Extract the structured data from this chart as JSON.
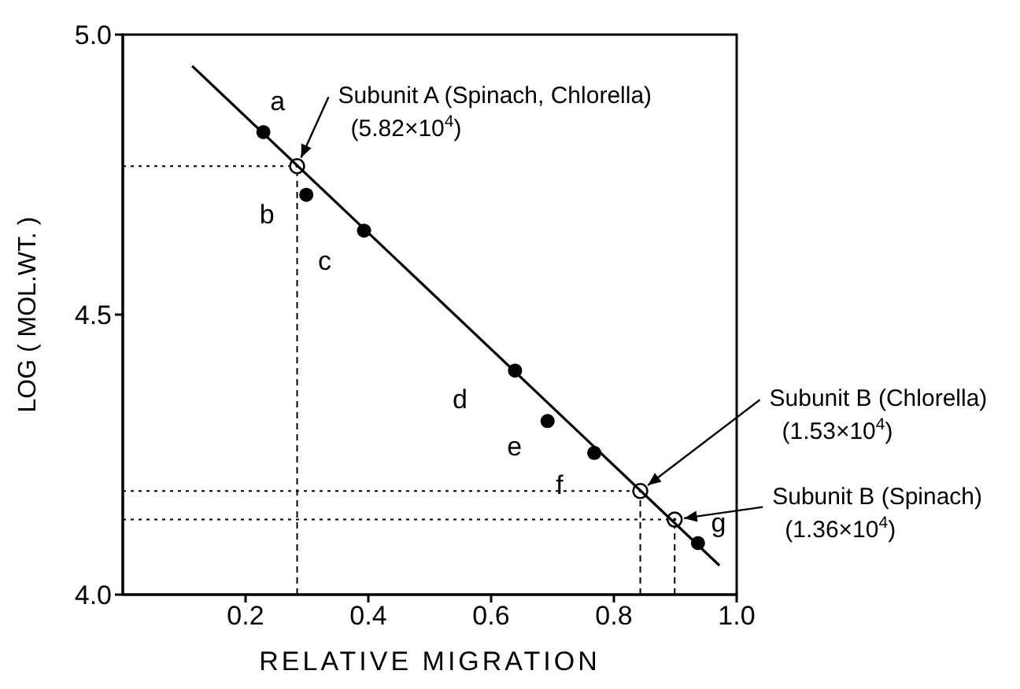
{
  "chart_data": {
    "type": "scatter",
    "xlabel": "RELATIVE MIGRATION",
    "ylabel": "LOG ( MOL.WT. )",
    "xlim": [
      0,
      1.0
    ],
    "xticks": [
      0.2,
      0.4,
      0.6,
      0.8,
      {
        "value": 1,
        "label": "1.0"
      }
    ],
    "ylim": [
      4.0,
      5.0
    ],
    "yticks": [
      {
        "value": 4,
        "label": "4.0"
      },
      4.5,
      {
        "value": 5,
        "label": "5.0"
      }
    ],
    "series": [
      {
        "color": "#000000",
        "marker": "circle",
        "x": [
          0.229,
          0.299,
          0.393,
          0.639,
          0.692,
          0.768,
          0.937
        ],
        "values": [
          4.826,
          4.714,
          4.65,
          4.4,
          4.31,
          4.253,
          4.092
        ]
      },
      {
        "color": "#000000",
        "marker": "circle",
        "x": [
          0.284,
          0.843,
          0.899
        ],
        "values": [
          4.765,
          4.185,
          4.134
        ]
      },
      {
        "type": "line",
        "color": "#000000",
        "marker": "none",
        "x": [
          0.113,
          0.972
        ],
        "values": [
          4.944,
          4.052
        ],
        "line_style": "solid"
      }
    ],
    "ref_lines": [
      {
        "axis": "y",
        "value": 4.765,
        "line_style": "dotted",
        "color": "#000000"
      },
      {
        "axis": "x",
        "value": 0.284,
        "line_style": "dashed",
        "color": "#000000"
      },
      {
        "axis": "y",
        "value": 4.185,
        "line_style": "dotted",
        "color": "#000000"
      },
      {
        "axis": "x",
        "value": 0.843,
        "line_style": "dashed",
        "color": "#000000"
      },
      {
        "axis": "y",
        "value": 4.134,
        "line_style": "dotted",
        "color": "#000000"
      },
      {
        "axis": "x",
        "value": 0.899,
        "line_style": "dashed",
        "color": "#000000"
      }
    ],
    "annotations": [
      "a",
      "b",
      "c",
      "d",
      "e",
      "f",
      "g",
      {
        "text": "Subunit A (Spinach, Chlorella)\n(5.82×10$^{4}$)",
        "x": 0.284,
        "y": 4.765
      },
      {
        "text": "Subunit B (Chlorella)\n(1.53×10$^{4}$)",
        "x": 0.843,
        "y": 4.185
      },
      {
        "text": "Subunit B (Spinach)\n(1.36×10$^{4}$)",
        "x": 0.899,
        "y": 4.134
      }
    ]
  }
}
